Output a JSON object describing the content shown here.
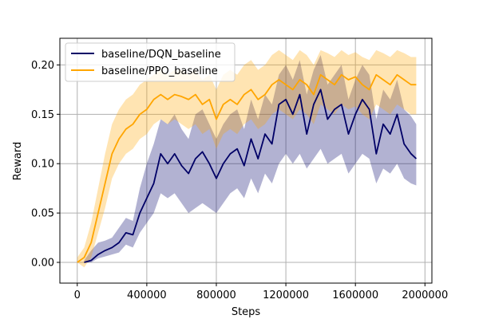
{
  "chart_data": {
    "type": "line",
    "xlabel": "Steps",
    "ylabel": "Reward",
    "xlim": [
      -100000,
      2040000
    ],
    "ylim": [
      -0.021,
      0.227
    ],
    "xticks": [
      0,
      400000,
      800000,
      1200000,
      1600000,
      2000000
    ],
    "xtick_labels": [
      "0",
      "400000",
      "800000",
      "1200000",
      "1600000",
      "2000000"
    ],
    "yticks": [
      0.0,
      0.05,
      0.1,
      0.15,
      0.2
    ],
    "ytick_labels": [
      "0.00",
      "0.05",
      "0.10",
      "0.15",
      "0.20"
    ],
    "grid": true,
    "legend_position": "top-left",
    "series": [
      {
        "name": "baseline/DQN_baseline",
        "color": "#000066",
        "band_color": "#00006a",
        "x": [
          40000,
          80000,
          120000,
          160000,
          200000,
          240000,
          280000,
          320000,
          360000,
          400000,
          440000,
          480000,
          520000,
          560000,
          600000,
          640000,
          680000,
          720000,
          760000,
          800000,
          840000,
          880000,
          920000,
          960000,
          1000000,
          1040000,
          1080000,
          1120000,
          1160000,
          1200000,
          1240000,
          1280000,
          1320000,
          1360000,
          1400000,
          1440000,
          1480000,
          1520000,
          1560000,
          1600000,
          1640000,
          1680000,
          1720000,
          1760000,
          1800000,
          1840000,
          1880000,
          1920000,
          1950000
        ],
        "values": [
          0.0,
          0.002,
          0.008,
          0.012,
          0.015,
          0.02,
          0.03,
          0.028,
          0.05,
          0.065,
          0.08,
          0.11,
          0.1,
          0.11,
          0.098,
          0.09,
          0.105,
          0.112,
          0.1,
          0.085,
          0.1,
          0.11,
          0.115,
          0.098,
          0.125,
          0.105,
          0.13,
          0.12,
          0.16,
          0.165,
          0.15,
          0.17,
          0.13,
          0.16,
          0.175,
          0.145,
          0.155,
          0.16,
          0.13,
          0.15,
          0.165,
          0.155,
          0.11,
          0.14,
          0.13,
          0.15,
          0.12,
          0.11,
          0.105
        ],
        "lower": [
          0.0,
          0.0,
          0.004,
          0.006,
          0.008,
          0.01,
          0.018,
          0.015,
          0.03,
          0.04,
          0.05,
          0.07,
          0.065,
          0.07,
          0.06,
          0.05,
          0.055,
          0.06,
          0.055,
          0.05,
          0.06,
          0.07,
          0.075,
          0.065,
          0.085,
          0.07,
          0.09,
          0.08,
          0.1,
          0.11,
          0.1,
          0.11,
          0.095,
          0.105,
          0.115,
          0.1,
          0.105,
          0.11,
          0.09,
          0.1,
          0.11,
          0.105,
          0.08,
          0.095,
          0.09,
          0.1,
          0.085,
          0.08,
          0.078
        ],
        "upper": [
          0.002,
          0.012,
          0.02,
          0.022,
          0.025,
          0.035,
          0.045,
          0.042,
          0.075,
          0.1,
          0.12,
          0.145,
          0.14,
          0.15,
          0.135,
          0.125,
          0.15,
          0.155,
          0.14,
          0.125,
          0.14,
          0.15,
          0.155,
          0.135,
          0.165,
          0.145,
          0.17,
          0.16,
          0.19,
          0.2,
          0.185,
          0.205,
          0.17,
          0.195,
          0.21,
          0.18,
          0.19,
          0.2,
          0.165,
          0.185,
          0.2,
          0.19,
          0.145,
          0.175,
          0.165,
          0.185,
          0.155,
          0.148,
          0.14
        ]
      },
      {
        "name": "baseline/PPO_baseline",
        "color": "#ffa500",
        "band_color": "#ffa500",
        "x": [
          0,
          40000,
          80000,
          120000,
          160000,
          200000,
          240000,
          280000,
          320000,
          360000,
          400000,
          440000,
          480000,
          520000,
          560000,
          600000,
          640000,
          680000,
          720000,
          760000,
          800000,
          840000,
          880000,
          920000,
          960000,
          1000000,
          1040000,
          1080000,
          1120000,
          1160000,
          1200000,
          1240000,
          1280000,
          1320000,
          1360000,
          1400000,
          1440000,
          1480000,
          1520000,
          1560000,
          1600000,
          1640000,
          1680000,
          1720000,
          1760000,
          1800000,
          1840000,
          1880000,
          1920000,
          1950000
        ],
        "values": [
          0.0,
          0.005,
          0.02,
          0.05,
          0.08,
          0.11,
          0.125,
          0.135,
          0.14,
          0.15,
          0.155,
          0.165,
          0.17,
          0.165,
          0.17,
          0.168,
          0.165,
          0.17,
          0.16,
          0.165,
          0.145,
          0.16,
          0.165,
          0.16,
          0.17,
          0.175,
          0.165,
          0.17,
          0.18,
          0.185,
          0.18,
          0.175,
          0.185,
          0.18,
          0.17,
          0.19,
          0.185,
          0.18,
          0.19,
          0.185,
          0.188,
          0.18,
          0.175,
          0.19,
          0.185,
          0.18,
          0.19,
          0.185,
          0.18,
          0.18
        ],
        "lower": [
          0.0,
          -0.005,
          0.005,
          0.03,
          0.055,
          0.085,
          0.1,
          0.11,
          0.115,
          0.125,
          0.13,
          0.14,
          0.145,
          0.14,
          0.145,
          0.14,
          0.135,
          0.14,
          0.13,
          0.135,
          0.115,
          0.13,
          0.135,
          0.13,
          0.14,
          0.145,
          0.135,
          0.14,
          0.15,
          0.155,
          0.15,
          0.145,
          0.155,
          0.15,
          0.14,
          0.16,
          0.155,
          0.15,
          0.16,
          0.155,
          0.158,
          0.15,
          0.145,
          0.16,
          0.155,
          0.15,
          0.16,
          0.155,
          0.15,
          0.15
        ],
        "upper": [
          0.005,
          0.015,
          0.04,
          0.075,
          0.11,
          0.14,
          0.155,
          0.165,
          0.17,
          0.18,
          0.185,
          0.19,
          0.195,
          0.19,
          0.195,
          0.195,
          0.19,
          0.195,
          0.185,
          0.19,
          0.175,
          0.19,
          0.195,
          0.19,
          0.2,
          0.205,
          0.195,
          0.2,
          0.21,
          0.215,
          0.21,
          0.205,
          0.215,
          0.21,
          0.2,
          0.215,
          0.212,
          0.208,
          0.215,
          0.21,
          0.213,
          0.208,
          0.205,
          0.215,
          0.212,
          0.208,
          0.215,
          0.212,
          0.208,
          0.208
        ]
      }
    ]
  }
}
